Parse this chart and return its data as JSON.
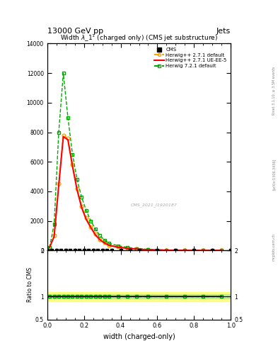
{
  "title_top": "13000 GeV pp",
  "title_right": "Jets",
  "plot_title": "Width $\\lambda$_1$^1$ (charged only) (CMS jet substructure)",
  "xlabel": "width (charged-only)",
  "ylabel_ratio": "Ratio to CMS",
  "watermark": "CMS_2021_I1920187",
  "rivet_label": "Rivet 3.1.10, ≥ 3.5M events",
  "arxiv_label": "[arXiv:1306.3436]",
  "mcplots_label": "mcplots.cern.ch",
  "herwig271_x": [
    0.0125,
    0.0375,
    0.0625,
    0.0875,
    0.1125,
    0.1375,
    0.1625,
    0.1875,
    0.2125,
    0.2375,
    0.2625,
    0.2875,
    0.3125,
    0.3375,
    0.3875,
    0.4375,
    0.4875,
    0.55,
    0.65,
    0.75,
    0.85,
    0.95
  ],
  "herwig271_y": [
    200,
    1000,
    4500,
    7800,
    7600,
    5800,
    4200,
    3000,
    2200,
    1600,
    1100,
    750,
    520,
    350,
    230,
    150,
    95,
    55,
    20,
    8,
    3,
    1
  ],
  "herwig271ueee5_x": [
    0.0125,
    0.0375,
    0.0625,
    0.0875,
    0.1125,
    0.1375,
    0.1625,
    0.1875,
    0.2125,
    0.2375,
    0.2625,
    0.2875,
    0.3125,
    0.3375,
    0.3875,
    0.4375,
    0.4875,
    0.55,
    0.65,
    0.75,
    0.85,
    0.95
  ],
  "herwig271ueee5_y": [
    200,
    950,
    4400,
    7700,
    7500,
    5700,
    4100,
    2900,
    2100,
    1550,
    1050,
    720,
    500,
    340,
    220,
    145,
    90,
    52,
    18,
    7,
    2.5,
    0.8
  ],
  "herwig721_x": [
    0.0125,
    0.0375,
    0.0625,
    0.0875,
    0.1125,
    0.1375,
    0.1625,
    0.1875,
    0.2125,
    0.2375,
    0.2625,
    0.2875,
    0.3125,
    0.3375,
    0.3875,
    0.4375,
    0.4875,
    0.55,
    0.65,
    0.75,
    0.85,
    0.95
  ],
  "herwig721_y": [
    200,
    1800,
    8000,
    12000,
    9000,
    6500,
    4800,
    3600,
    2700,
    2000,
    1450,
    1000,
    700,
    480,
    320,
    210,
    130,
    75,
    28,
    10,
    4,
    1.2
  ],
  "cms_x": [
    0.0,
    0.025,
    0.05,
    0.075,
    0.1,
    0.125,
    0.15,
    0.175,
    0.2,
    0.225,
    0.25,
    0.275,
    0.3,
    0.325,
    0.35,
    0.4,
    0.45,
    0.5,
    0.6,
    0.7,
    0.8,
    0.9,
    1.0
  ],
  "cms_y": [
    0.0,
    0.0,
    0.0,
    0.0,
    0.0,
    0.0,
    0.0,
    0.0,
    0.0,
    0.0,
    0.0,
    0.0,
    0.0,
    0.0,
    0.0,
    0.0,
    0.0,
    0.0,
    0.0,
    0.0,
    0.0,
    0.0,
    0.0
  ],
  "color_cms": "#000000",
  "color_herwig271": "#FFA500",
  "color_herwig271ueee5": "#FF0000",
  "color_herwig721": "#00AA00",
  "ylim_main": [
    0,
    14000
  ],
  "ylim_ratio": [
    0.5,
    2.0
  ],
  "xlim": [
    0.0,
    1.0
  ],
  "yticks_main": [
    0,
    2000,
    4000,
    6000,
    8000,
    10000,
    12000,
    14000
  ],
  "ytick_labels_main": [
    "0",
    "2000",
    "4000",
    "6000",
    "8000",
    "10000",
    "12000",
    "14000"
  ],
  "yticks_ratio": [
    0.5,
    1.0,
    2.0
  ],
  "ytick_labels_ratio": [
    "0.5",
    "1",
    "2"
  ],
  "bg_color": "#ffffff",
  "legend_labels": [
    "CMS",
    "Herwig++ 2.7.1 default",
    "Herwig++ 2.7.1 UE-EE-5",
    "Herwig 7.2.1 default"
  ]
}
